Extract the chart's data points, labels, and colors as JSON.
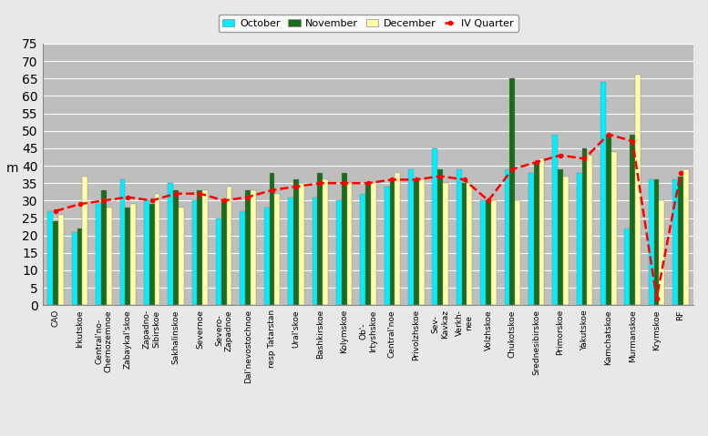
{
  "categories": [
    "CAO",
    "Irkutskoe",
    "Central'no-\nChernozemnoe",
    "Zabaykal'skoe",
    "Zapadno-\nSibirskoe",
    "Sakhalinskoe",
    "Severnoe",
    "Severo-\nZapadnoe",
    "Dal'nevostochnoe",
    "resp Tatarstan",
    "Ural'skoe",
    "Bashkirskoe",
    "Kolymskoe",
    "Ob'-\nIrtyshskoe",
    "Central'noe",
    "Privolzhskoe",
    "Sev-\nKavkaz",
    "Verkh-\nnee",
    "Volzhskoe",
    "Chukotskoe",
    "Srednesibirskoe",
    "Primorskoe",
    "Yakutskoe",
    "Kamchatskoe",
    "Murmanskoe",
    "Krymskoe",
    "RF"
  ],
  "october": [
    27,
    21,
    29,
    36,
    30,
    35,
    30,
    25,
    27,
    28,
    31,
    31,
    30,
    32,
    34,
    39,
    45,
    39,
    30,
    39,
    38,
    49,
    38,
    64,
    22,
    36,
    36
  ],
  "november": [
    24,
    22,
    33,
    28,
    29,
    33,
    33,
    30,
    33,
    38,
    36,
    38,
    38,
    35,
    36,
    36,
    39,
    35,
    30,
    65,
    41,
    39,
    45,
    49,
    49,
    36,
    37
  ],
  "december": [
    26,
    37,
    28,
    29,
    32,
    28,
    33,
    34,
    33,
    32,
    35,
    36,
    35,
    35,
    38,
    36,
    35,
    35,
    30,
    30,
    42,
    37,
    43,
    44,
    66,
    30,
    39
  ],
  "iv_quarter": [
    27,
    29,
    30,
    31,
    30,
    32,
    32,
    30,
    31,
    33,
    34,
    35,
    35,
    35,
    36,
    36,
    37,
    36,
    30,
    39,
    41,
    43,
    42,
    49,
    47,
    2,
    38
  ],
  "colors": {
    "october": "#00EEFF",
    "november": "#1A6B1A",
    "december": "#FFFFAA",
    "iv_quarter": "#FF0000"
  },
  "ylabel": "m",
  "ylim": [
    0,
    75
  ],
  "yticks": [
    0,
    5,
    10,
    15,
    20,
    25,
    30,
    35,
    40,
    45,
    50,
    55,
    60,
    65,
    70,
    75
  ],
  "plot_bg_color": "#BEBEBE",
  "fig_bg_color": "#E8E8E8",
  "grid_color": "#FFFFFF",
  "bar_edge_color": "#888888",
  "bar_edge_width": 0.3
}
